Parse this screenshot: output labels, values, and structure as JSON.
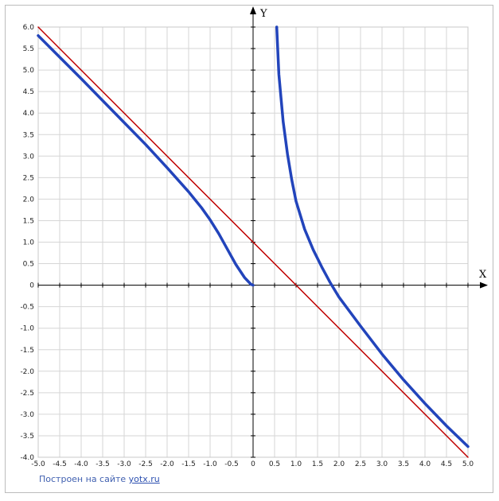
{
  "chart_data": {
    "type": "line",
    "xlabel": "X",
    "ylabel": "Y",
    "xlim": [
      -5.0,
      5.0
    ],
    "ylim": [
      -4.0,
      6.0
    ],
    "grid": true,
    "x_ticks": [
      "-5.0",
      "-4.5",
      "-4.0",
      "-3.5",
      "-3.0",
      "-2.5",
      "-2.0",
      "-1.5",
      "-1.0",
      "-0.5",
      "0",
      "0.5",
      "1.0",
      "1.5",
      "2.0",
      "2.5",
      "3.0",
      "3.5",
      "4.0",
      "4.5",
      "5.0"
    ],
    "y_ticks": [
      "6.0",
      "5.5",
      "5.0",
      "4.5",
      "4.0",
      "3.5",
      "3.0",
      "2.5",
      "2.0",
      "1.5",
      "1.0",
      "0.5",
      "0",
      "-0.5",
      "-1.0",
      "-1.5",
      "-2.0",
      "-2.5",
      "-3.0",
      "-3.5",
      "-4.0"
    ],
    "series": [
      {
        "color": "#2244bb",
        "segments": [
          [
            [
              -5.0,
              5.8
            ],
            [
              -4.5,
              5.3
            ],
            [
              -4.0,
              4.8
            ],
            [
              -3.5,
              4.29
            ],
            [
              -3.0,
              3.78
            ],
            [
              -2.5,
              3.27
            ],
            [
              -2.0,
              2.73
            ],
            [
              -1.5,
              2.17
            ],
            [
              -1.2,
              1.8
            ],
            [
              -1.0,
              1.52
            ],
            [
              -0.8,
              1.2
            ],
            [
              -0.6,
              0.84
            ],
            [
              -0.4,
              0.48
            ],
            [
              -0.2,
              0.18
            ],
            [
              -0.05,
              0.02
            ],
            [
              0.0,
              0.0
            ]
          ],
          [
            [
              0.55,
              6.0
            ],
            [
              0.6,
              4.9
            ],
            [
              0.7,
              3.8
            ],
            [
              0.8,
              3.05
            ],
            [
              0.9,
              2.45
            ],
            [
              1.0,
              1.95
            ],
            [
              1.2,
              1.3
            ],
            [
              1.4,
              0.82
            ],
            [
              1.6,
              0.42
            ],
            [
              1.8,
              0.05
            ],
            [
              2.0,
              -0.28
            ],
            [
              2.5,
              -0.95
            ],
            [
              3.0,
              -1.6
            ],
            [
              3.5,
              -2.2
            ],
            [
              4.0,
              -2.75
            ],
            [
              4.5,
              -3.27
            ],
            [
              5.0,
              -3.75
            ]
          ]
        ]
      },
      {
        "color": "#c00000",
        "segments": [
          [
            [
              -5.0,
              6.0
            ],
            [
              5.0,
              -4.0
            ]
          ]
        ]
      }
    ]
  },
  "footer": {
    "credit_text": "Построен на сайте",
    "credit_link": "yotx.ru"
  }
}
